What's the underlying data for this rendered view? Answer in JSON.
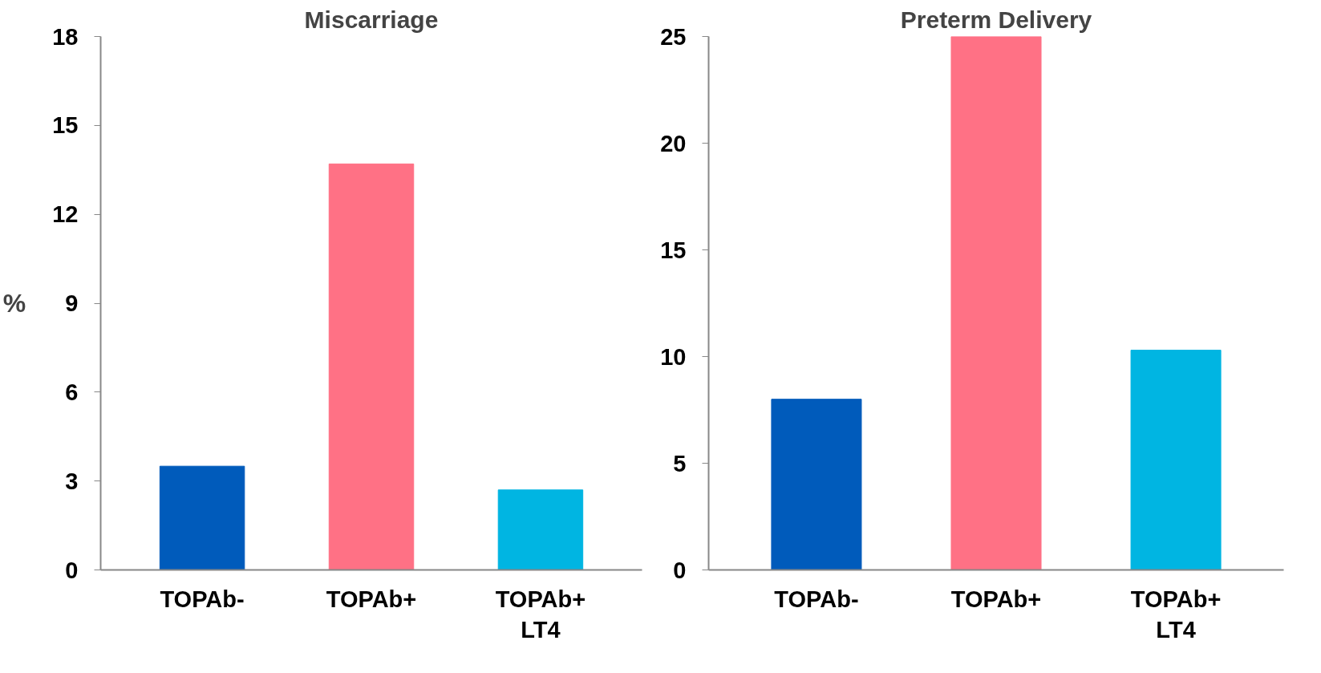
{
  "chart_data": [
    {
      "type": "bar",
      "title": "Miscarriage",
      "ylabel": "%",
      "categories": [
        "TOPAb-",
        "TOPAb+",
        "TOPAb+\nLT4"
      ],
      "values": [
        3.5,
        13.7,
        2.7
      ],
      "colors": [
        "#005bbb",
        "#ff7185",
        "#00b5e2"
      ],
      "ylim": [
        0,
        18
      ],
      "yticks": [
        0,
        3,
        6,
        9,
        12,
        15,
        18
      ]
    },
    {
      "type": "bar",
      "title": "Preterm Delivery",
      "categories": [
        "TOPAb-",
        "TOPAb+",
        "TOPAb+\nLT4"
      ],
      "values": [
        8.0,
        25.0,
        10.3
      ],
      "colors": [
        "#005bbb",
        "#ff7185",
        "#00b5e2"
      ],
      "ylim": [
        0,
        25
      ],
      "yticks": [
        0,
        5,
        10,
        15,
        20,
        25
      ]
    }
  ]
}
